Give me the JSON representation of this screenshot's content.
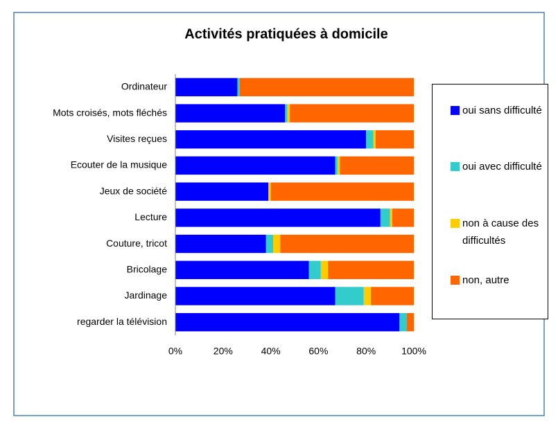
{
  "chart_data": {
    "type": "stacked-barh",
    "title": "Activités pratiquées à domicile",
    "categories": [
      "Ordinateur",
      "Mots croisés, mots fléchés",
      "Visites reçues",
      "Ecouter de la musique",
      "Jeux de société",
      "Lecture",
      "Couture, tricot",
      "Bricolage",
      "Jardinage",
      "regarder la télévision"
    ],
    "series": [
      {
        "name": "oui sans difficulté",
        "color": "#0000ff",
        "values": [
          26,
          46,
          80,
          67,
          39,
          86,
          38,
          56,
          67,
          94
        ]
      },
      {
        "name": "oui avec difficulté",
        "color": "#33cccc",
        "values": [
          1,
          1,
          3,
          1,
          0,
          4,
          3,
          5,
          12,
          3
        ]
      },
      {
        "name": "non à cause des difficultés",
        "color": "#ffcc00",
        "values": [
          0,
          1,
          1,
          1,
          1,
          1,
          3,
          3,
          3,
          0
        ]
      },
      {
        "name": "non, autre",
        "color": "#ff6600",
        "values": [
          73,
          52,
          16,
          31,
          60,
          9,
          56,
          36,
          18,
          3
        ]
      }
    ],
    "xlim": [
      0,
      100
    ],
    "xticks": [
      {
        "value": 0,
        "label": "0%"
      },
      {
        "value": 20,
        "label": "20%"
      },
      {
        "value": 40,
        "label": "40%"
      },
      {
        "value": 60,
        "label": "60%"
      },
      {
        "value": 80,
        "label": "80%"
      },
      {
        "value": 100,
        "label": "100%"
      }
    ],
    "legend": "right"
  }
}
